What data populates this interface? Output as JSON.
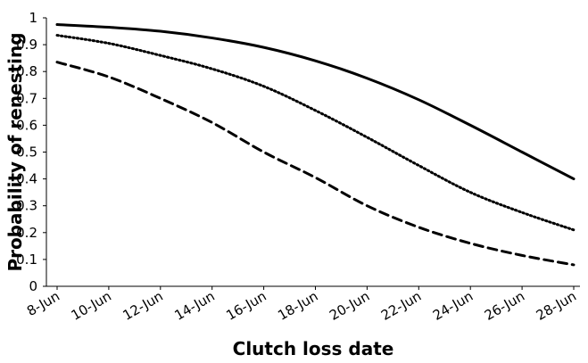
{
  "chart_data": {
    "type": "line",
    "title": "",
    "xlabel": "Clutch loss date",
    "ylabel": "Probability of renesting",
    "x_ticks": [
      "8-Jun",
      "10-Jun",
      "12-Jun",
      "14-Jun",
      "16-Jun",
      "18-Jun",
      "20-Jun",
      "22-Jun",
      "24-Jun",
      "26-Jun",
      "28-Jun"
    ],
    "y_ticks": [
      "0",
      "0.1",
      "0.2",
      "0.3",
      "0.4",
      "0.5",
      "0.6",
      "0.7",
      "0.8",
      "0.9",
      "1"
    ],
    "ylim": [
      0,
      1
    ],
    "xlim": [
      "8-Jun",
      "28-Jun"
    ],
    "grid": false,
    "legend": "none",
    "x": [
      "8-Jun",
      "10-Jun",
      "12-Jun",
      "14-Jun",
      "16-Jun",
      "18-Jun",
      "20-Jun",
      "22-Jun",
      "24-Jun",
      "26-Jun",
      "28-Jun"
    ],
    "series": [
      {
        "style": "solid",
        "color": "#000000",
        "values": [
          0.975,
          0.965,
          0.95,
          0.925,
          0.89,
          0.84,
          0.775,
          0.695,
          0.6,
          0.5,
          0.4
        ]
      },
      {
        "style": "dotted",
        "color": "#000000",
        "values": [
          0.935,
          0.905,
          0.86,
          0.81,
          0.745,
          0.655,
          0.555,
          0.45,
          0.35,
          0.275,
          0.21
        ]
      },
      {
        "style": "dashed",
        "color": "#000000",
        "values": [
          0.835,
          0.78,
          0.7,
          0.61,
          0.5,
          0.405,
          0.3,
          0.22,
          0.16,
          0.115,
          0.08
        ]
      }
    ]
  }
}
